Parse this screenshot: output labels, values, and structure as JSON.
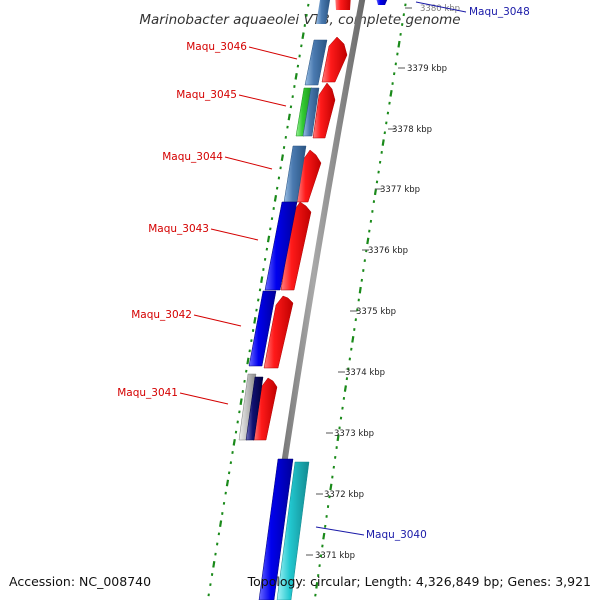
{
  "map": {
    "title": "Marinobacter aquaeolei VT8, complete genome",
    "accession": "Accession: NC_008740",
    "summary": "Topology: circular; Length: 4,326,849 bp; Genes: 3,921",
    "kbp_labels": [
      "3380 kbp",
      "3379 kbp",
      "3378 kbp",
      "3377 kbp",
      "3376 kbp",
      "3375 kbp",
      "3374 kbp",
      "3373 kbp",
      "3372 kbp",
      "3371 kbp"
    ],
    "genes_left": [
      "Maqu_3046",
      "Maqu_3045",
      "Maqu_3044",
      "Maqu_3043",
      "Maqu_3042",
      "Maqu_3041"
    ],
    "genes_right": [
      "Maqu_3048",
      "Maqu_3040"
    ],
    "colors": {
      "forward_strand": "#ff1a1a",
      "reverse_cds_blue": "#0000ee",
      "reverse_cds_steel": "#4a7ab0",
      "green_feature": "#33cc33",
      "cyan_feature": "#22c8d0",
      "backbone": "#808080",
      "gc_ticks": "#1a8a1a",
      "label_red": "#d40000",
      "label_blue": "#1a1aa8"
    }
  }
}
